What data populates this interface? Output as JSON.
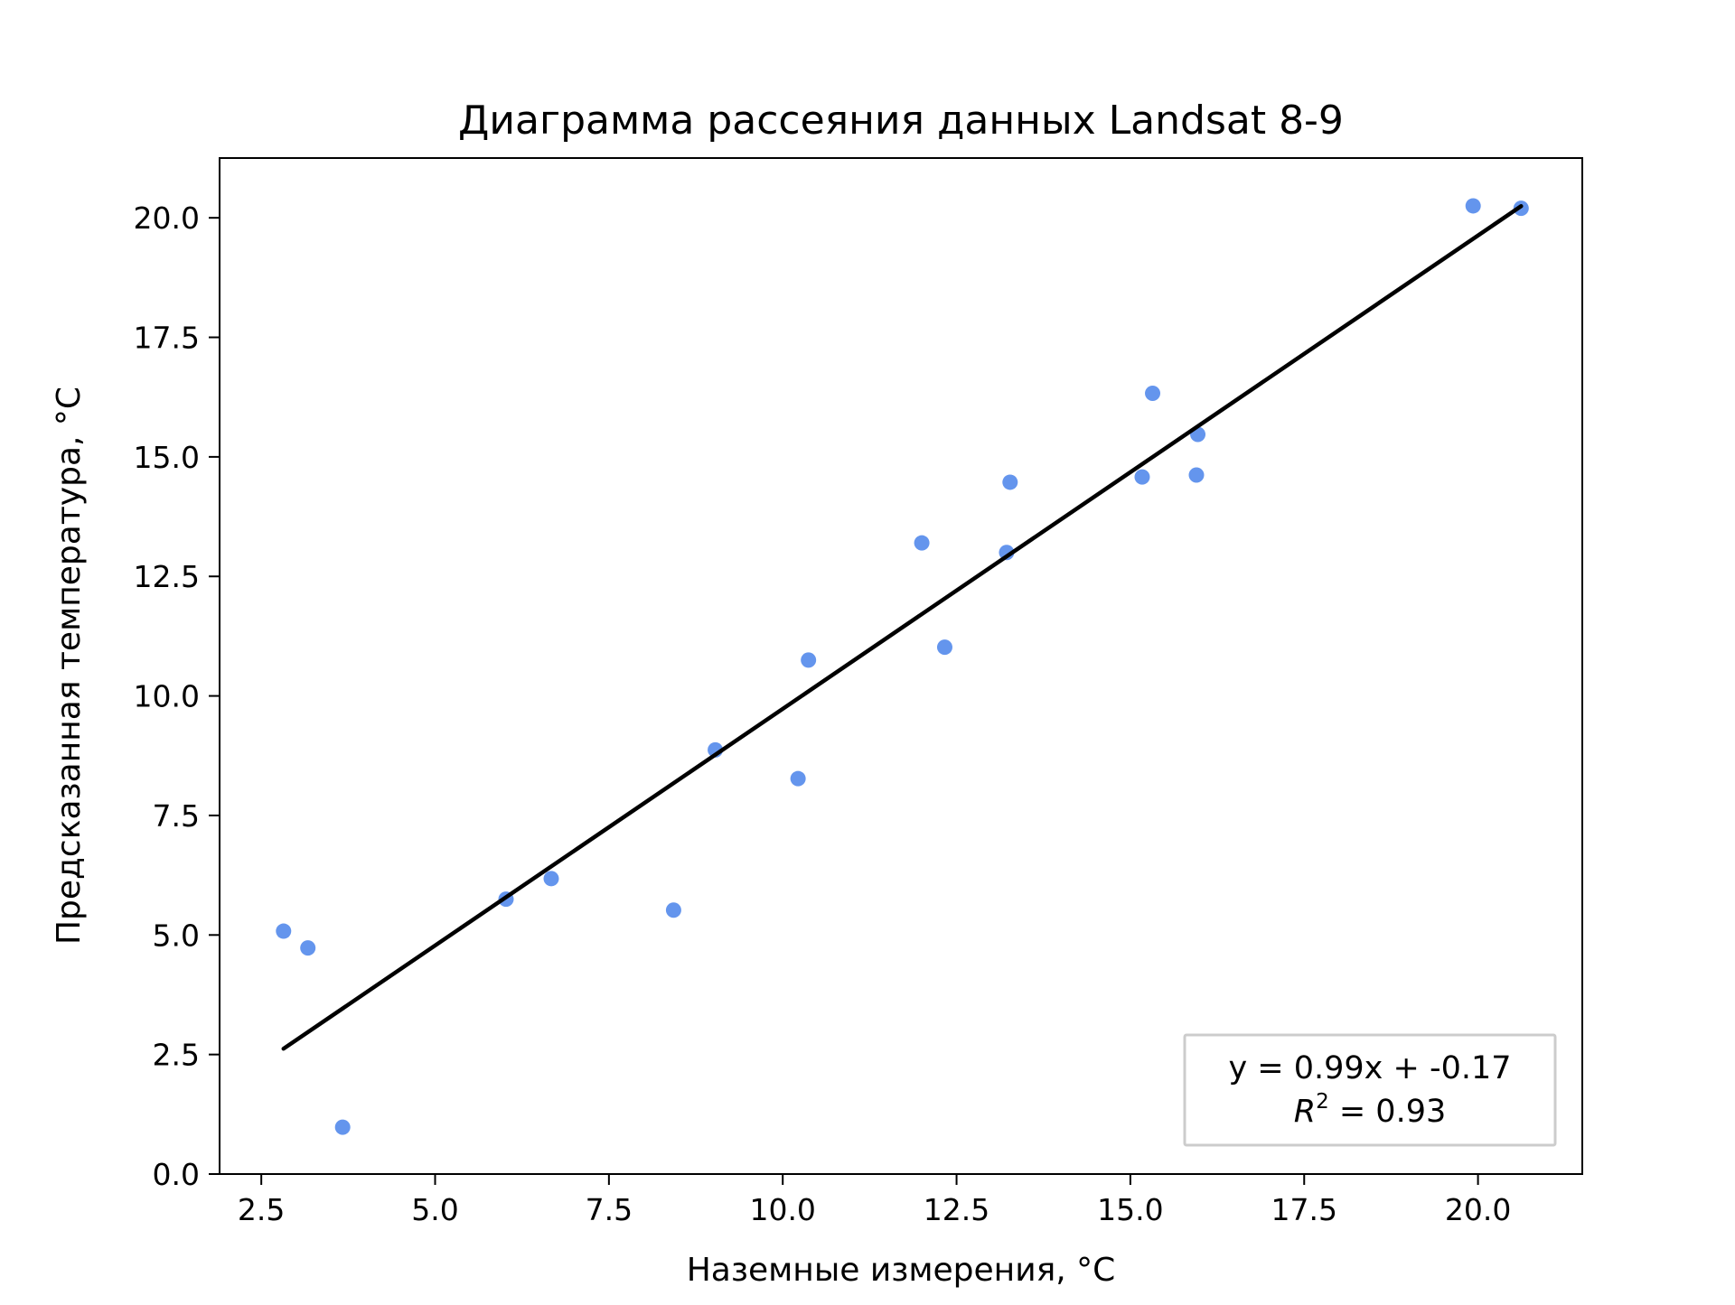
{
  "chart_data": {
    "type": "scatter",
    "title": "Диаграмма рассеяния данных Landsat 8-9",
    "xlabel": "Наземные измерения, °C",
    "ylabel": "Предсказанная температура, °C",
    "xlim": [
      1.9,
      21.5
    ],
    "ylim": [
      0,
      21.25
    ],
    "x_ticks": [
      2.5,
      5.0,
      7.5,
      10.0,
      12.5,
      15.0,
      17.5,
      20.0
    ],
    "x_tick_labels": [
      "2.5",
      "5.0",
      "7.5",
      "10.0",
      "12.5",
      "15.0",
      "17.5",
      "20.0"
    ],
    "y_ticks": [
      0.0,
      2.5,
      5.0,
      7.5,
      10.0,
      12.5,
      15.0,
      17.5,
      20.0
    ],
    "y_tick_labels": [
      "0.0",
      "2.5",
      "5.0",
      "7.5",
      "10.0",
      "12.5",
      "15.0",
      "17.5",
      "20.0"
    ],
    "grid": false,
    "point_color": "#6495ED",
    "line_color": "#000000",
    "series": [
      {
        "points": [
          [
            2.82,
            5.08
          ],
          [
            3.17,
            4.73
          ],
          [
            3.67,
            0.98
          ],
          [
            6.02,
            5.75
          ],
          [
            6.67,
            6.18
          ],
          [
            8.43,
            5.52
          ],
          [
            9.03,
            8.87
          ],
          [
            10.22,
            8.27
          ],
          [
            10.37,
            10.75
          ],
          [
            12.0,
            13.2
          ],
          [
            12.33,
            11.02
          ],
          [
            13.22,
            13.0
          ],
          [
            13.27,
            14.47
          ],
          [
            15.17,
            14.58
          ],
          [
            15.32,
            16.33
          ],
          [
            15.95,
            14.62
          ],
          [
            15.97,
            15.47
          ],
          [
            19.93,
            20.25
          ],
          [
            20.62,
            20.2
          ]
        ]
      }
    ],
    "fit_line": {
      "slope": 0.99,
      "intercept": -0.17,
      "x_start": 2.82,
      "x_end": 20.62
    },
    "legend": {
      "position": "lower-right",
      "equation": "y = 0.99x + -0.17",
      "r2_symbol": "R",
      "r2_exp": "2",
      "r2_text": " = 0.93"
    }
  }
}
